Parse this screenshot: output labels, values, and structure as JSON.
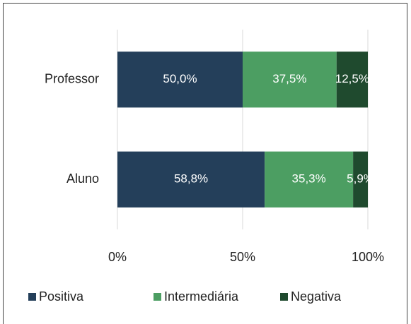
{
  "chart_data": {
    "type": "bar",
    "orientation": "horizontal",
    "stacked": true,
    "categories": [
      "Professor",
      "Aluno"
    ],
    "series": [
      {
        "name": "Positiva",
        "color": "#243f5a",
        "values": [
          50.0,
          58.8
        ],
        "value_labels": [
          "50,0%",
          "58,8%"
        ]
      },
      {
        "name": "Intermediária",
        "color": "#4c9e62",
        "values": [
          37.5,
          35.3
        ],
        "value_labels": [
          "37,5%",
          "35,3%"
        ]
      },
      {
        "name": "Negativa",
        "color": "#1f4a2e",
        "values": [
          12.5,
          5.9
        ],
        "value_labels": [
          "12,5%",
          "5,9%"
        ]
      }
    ],
    "xlim": [
      0,
      100
    ],
    "xticks": [
      {
        "value": 0,
        "label": "0%"
      },
      {
        "value": 50,
        "label": "50%"
      },
      {
        "value": 100,
        "label": "100%"
      }
    ],
    "grid": true,
    "legend": "bottom"
  }
}
